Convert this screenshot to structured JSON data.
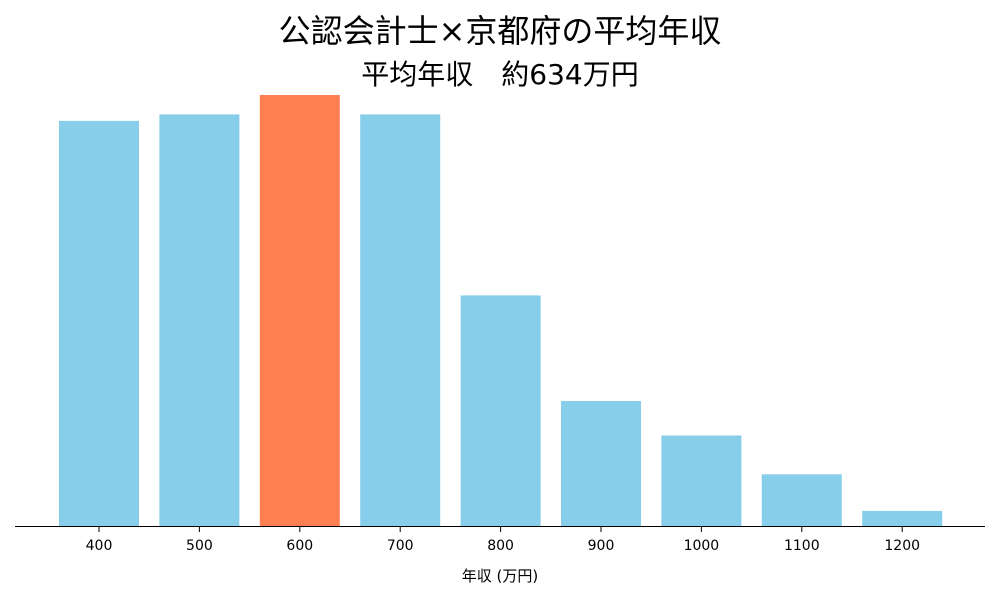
{
  "chart_data": {
    "type": "bar",
    "title": "公認会計士×京都府の平均年収",
    "subtitle": "平均年収　約634万円",
    "xlabel": "年収 (万円)",
    "ylabel": "",
    "categories": [
      "400",
      "500",
      "600",
      "700",
      "800",
      "900",
      "1000",
      "1100",
      "1200"
    ],
    "values": [
      94,
      95.5,
      100,
      95.5,
      53.5,
      29,
      21,
      12,
      3.5
    ],
    "highlight_category": "600",
    "ylim": [
      0,
      100
    ],
    "grid": false,
    "y_axis_visible": false,
    "colors": {
      "bar": "#87CEEB",
      "highlight": "#FF7F50",
      "axis": "#000000"
    }
  }
}
